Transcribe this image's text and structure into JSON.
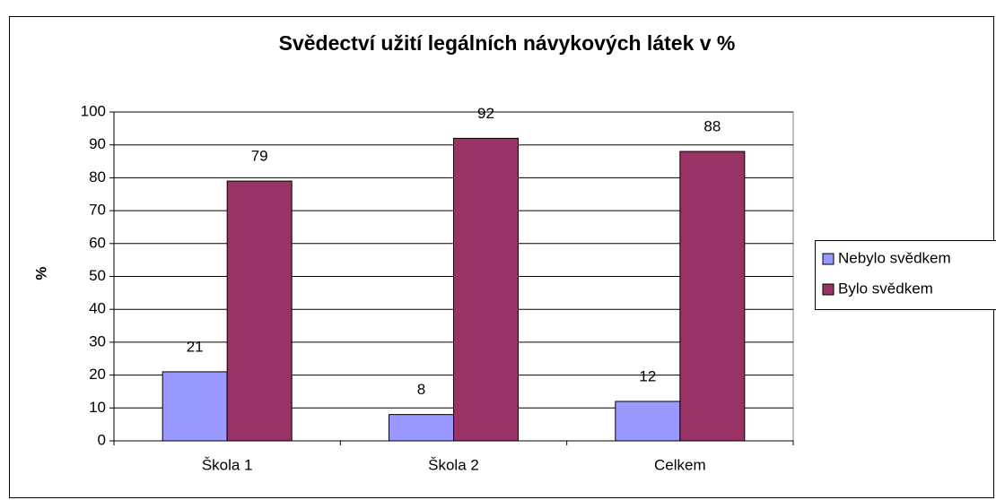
{
  "chart_data": {
    "type": "bar",
    "title": "Svědectví užití legálních návykových látek v %",
    "y_label": "%",
    "categories": [
      "Škola 1",
      "Škola 2",
      "Celkem"
    ],
    "series": [
      {
        "name": "Nebylo svědkem",
        "color": "#9999ff",
        "values": [
          21,
          8,
          12
        ]
      },
      {
        "name": "Bylo svědkem",
        "color": "#993366",
        "values": [
          79,
          92,
          88
        ]
      }
    ],
    "ylim": [
      0,
      100
    ],
    "yticks": [
      0,
      10,
      20,
      30,
      40,
      50,
      60,
      70,
      80,
      90,
      100
    ],
    "grid": true,
    "legend": "right"
  }
}
